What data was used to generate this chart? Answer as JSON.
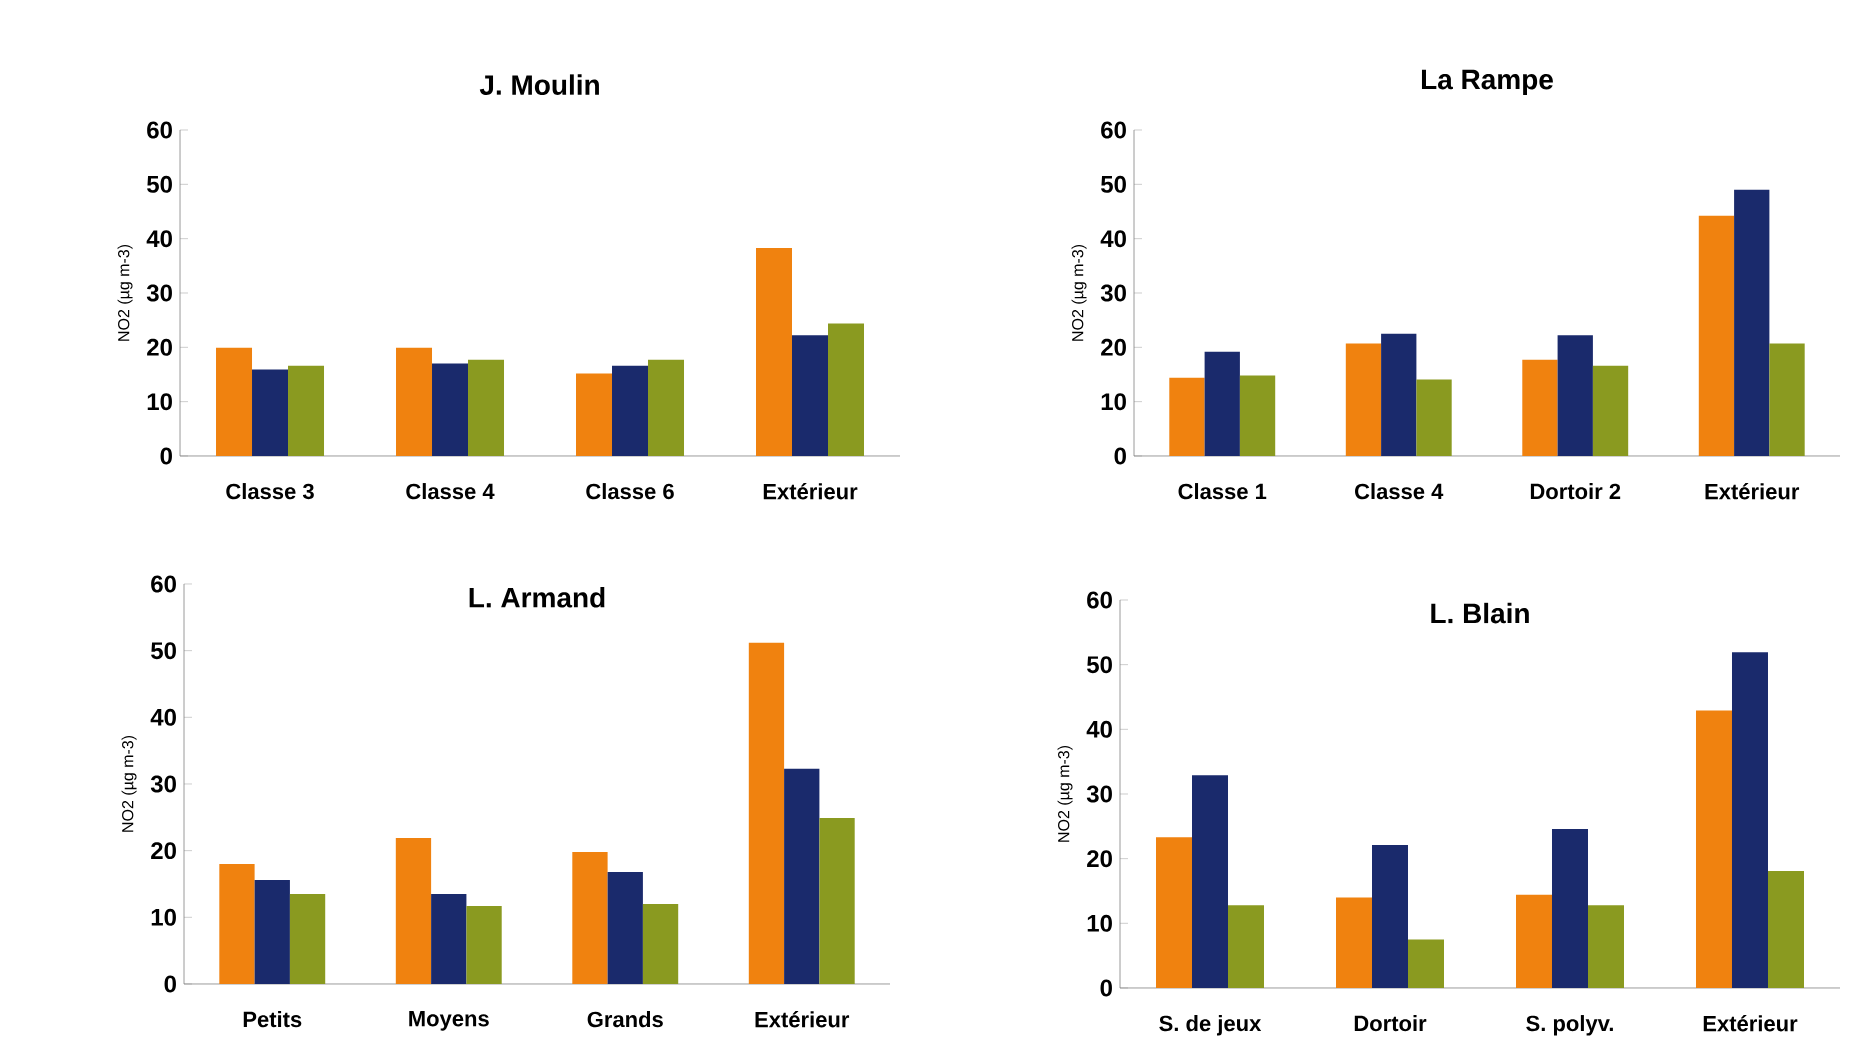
{
  "chart_data": [
    {
      "type": "bar",
      "title": "J. Moulin",
      "ylabel": "NO2 (µg m-3)",
      "categories": [
        "Classe 3",
        "Classe 4",
        "Classe 6",
        "Extérieur"
      ],
      "ylim": [
        0,
        60
      ],
      "yticks": [
        0,
        10,
        20,
        30,
        40,
        50,
        60
      ],
      "series": [
        {
          "color": "#f0820f",
          "values": [
            19.9,
            19.9,
            15.2,
            38.3
          ]
        },
        {
          "color": "#1a2a6c",
          "values": [
            15.9,
            17.0,
            16.6,
            22.2
          ]
        },
        {
          "color": "#8a9a20",
          "values": [
            16.6,
            17.7,
            17.7,
            24.4
          ]
        }
      ]
    },
    {
      "type": "bar",
      "title": "La Rampe",
      "ylabel": "NO2 (µg m-3)",
      "categories": [
        "Classe 1",
        "Classe 4",
        "Dortoir 2",
        "Extérieur"
      ],
      "ylim": [
        0,
        60
      ],
      "yticks": [
        0,
        10,
        20,
        30,
        40,
        50,
        60
      ],
      "series": [
        {
          "color": "#f0820f",
          "values": [
            14.4,
            20.7,
            17.7,
            44.2
          ]
        },
        {
          "color": "#1a2a6c",
          "values": [
            19.2,
            22.5,
            22.2,
            49.0
          ]
        },
        {
          "color": "#8a9a20",
          "values": [
            14.8,
            14.1,
            16.6,
            20.7
          ]
        }
      ]
    },
    {
      "type": "bar",
      "title": "L. Armand",
      "ylabel": "NO2 (µg m-3)",
      "categories": [
        "Petits",
        "Moyens",
        "Grands",
        "Extérieur"
      ],
      "ylim": [
        0,
        60
      ],
      "yticks": [
        0,
        10,
        20,
        30,
        40,
        50,
        60
      ],
      "series": [
        {
          "color": "#f0820f",
          "values": [
            18.0,
            21.9,
            19.8,
            51.2
          ]
        },
        {
          "color": "#1a2a6c",
          "values": [
            15.6,
            13.5,
            16.8,
            32.3
          ]
        },
        {
          "color": "#8a9a20",
          "values": [
            13.5,
            11.7,
            12.0,
            24.9
          ]
        }
      ]
    },
    {
      "type": "bar",
      "title": "L. Blain",
      "ylabel": "NO2 (µg m-3)",
      "categories": [
        "S. de jeux",
        "Dortoir",
        "S. polyv.",
        "Extérieur"
      ],
      "ylim": [
        0,
        60
      ],
      "yticks": [
        0,
        10,
        20,
        30,
        40,
        50,
        60
      ],
      "series": [
        {
          "color": "#f0820f",
          "values": [
            23.3,
            14.0,
            14.4,
            42.9
          ]
        },
        {
          "color": "#1a2a6c",
          "values": [
            32.9,
            22.1,
            24.6,
            51.9
          ]
        },
        {
          "color": "#8a9a20",
          "values": [
            12.8,
            7.5,
            12.8,
            18.1
          ]
        }
      ]
    }
  ]
}
